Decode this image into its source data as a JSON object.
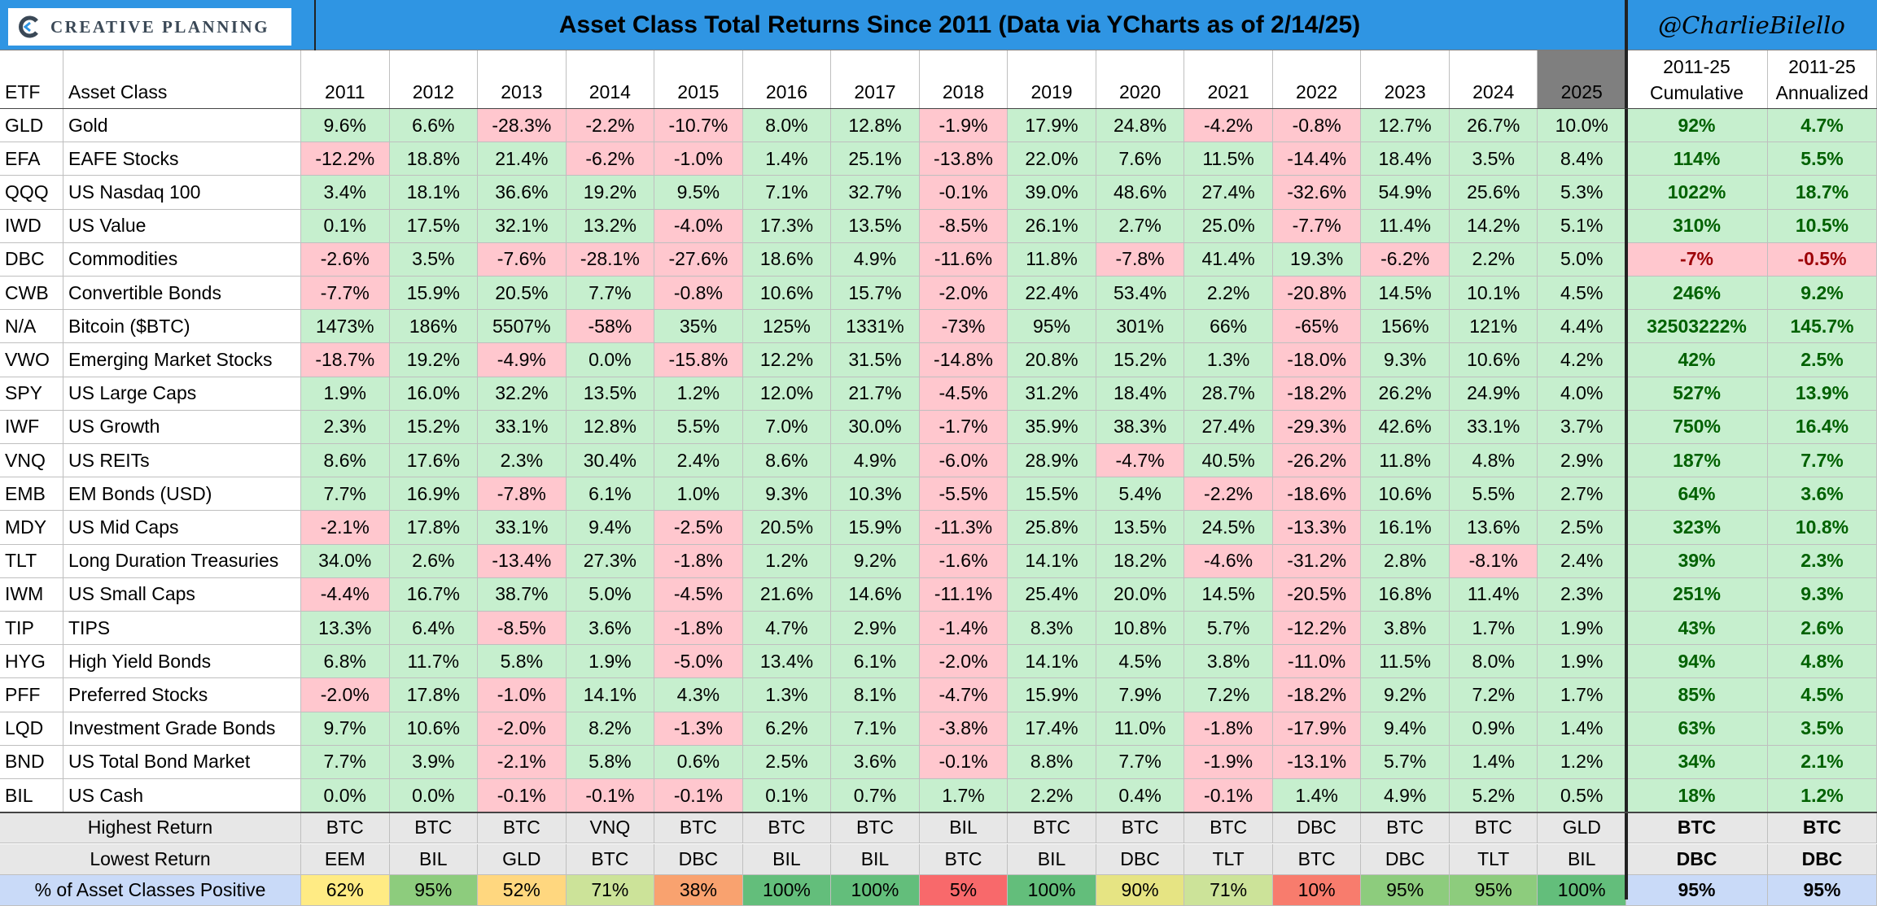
{
  "header": {
    "logo_text": "CREATIVE PLANNING",
    "title": "Asset Class Total Returns Since 2011 (Data via YCharts as of 2/14/25)",
    "handle": "@CharlieBilello",
    "col_etf": "ETF",
    "col_asset_class": "Asset Class",
    "years": [
      "2011",
      "2012",
      "2013",
      "2014",
      "2015",
      "2016",
      "2017",
      "2018",
      "2019",
      "2020",
      "2021",
      "2022",
      "2023",
      "2024",
      "2025"
    ],
    "cum_label_1": "2011-25",
    "cum_label_2": "Cumulative",
    "ann_label_1": "2011-25",
    "ann_label_2": "Annualized"
  },
  "colors": {
    "title_bar": "#2f95e3",
    "positive_fill": "#c6efce",
    "negative_fill": "#ffc7ce",
    "header_gray": "#e7e7e7",
    "highlight_2025": "#7f7f7f"
  },
  "chart_data": {
    "type": "table",
    "title": "Asset Class Total Returns Since 2011 (Data via YCharts as of 2/14/25)",
    "columns": [
      "2011",
      "2012",
      "2013",
      "2014",
      "2015",
      "2016",
      "2017",
      "2018",
      "2019",
      "2020",
      "2021",
      "2022",
      "2023",
      "2024",
      "2025",
      "2011-25 Cumulative",
      "2011-25 Annualized"
    ],
    "rows": [
      {
        "etf": "GLD",
        "name": "Gold",
        "values": [
          "9.6%",
          "6.6%",
          "-28.3%",
          "-2.2%",
          "-10.7%",
          "8.0%",
          "12.8%",
          "-1.9%",
          "17.9%",
          "24.8%",
          "-4.2%",
          "-0.8%",
          "12.7%",
          "26.7%",
          "10.0%"
        ],
        "cumulative": "92%",
        "annualized": "4.7%"
      },
      {
        "etf": "EFA",
        "name": "EAFE Stocks",
        "values": [
          "-12.2%",
          "18.8%",
          "21.4%",
          "-6.2%",
          "-1.0%",
          "1.4%",
          "25.1%",
          "-13.8%",
          "22.0%",
          "7.6%",
          "11.5%",
          "-14.4%",
          "18.4%",
          "3.5%",
          "8.4%"
        ],
        "cumulative": "114%",
        "annualized": "5.5%"
      },
      {
        "etf": "QQQ",
        "name": "US Nasdaq 100",
        "values": [
          "3.4%",
          "18.1%",
          "36.6%",
          "19.2%",
          "9.5%",
          "7.1%",
          "32.7%",
          "-0.1%",
          "39.0%",
          "48.6%",
          "27.4%",
          "-32.6%",
          "54.9%",
          "25.6%",
          "5.3%"
        ],
        "cumulative": "1022%",
        "annualized": "18.7%"
      },
      {
        "etf": "IWD",
        "name": "US Value",
        "values": [
          "0.1%",
          "17.5%",
          "32.1%",
          "13.2%",
          "-4.0%",
          "17.3%",
          "13.5%",
          "-8.5%",
          "26.1%",
          "2.7%",
          "25.0%",
          "-7.7%",
          "11.4%",
          "14.2%",
          "5.1%"
        ],
        "cumulative": "310%",
        "annualized": "10.5%"
      },
      {
        "etf": "DBC",
        "name": "Commodities",
        "values": [
          "-2.6%",
          "3.5%",
          "-7.6%",
          "-28.1%",
          "-27.6%",
          "18.6%",
          "4.9%",
          "-11.6%",
          "11.8%",
          "-7.8%",
          "41.4%",
          "19.3%",
          "-6.2%",
          "2.2%",
          "5.0%"
        ],
        "cumulative": "-7%",
        "annualized": "-0.5%"
      },
      {
        "etf": "CWB",
        "name": "Convertible Bonds",
        "values": [
          "-7.7%",
          "15.9%",
          "20.5%",
          "7.7%",
          "-0.8%",
          "10.6%",
          "15.7%",
          "-2.0%",
          "22.4%",
          "53.4%",
          "2.2%",
          "-20.8%",
          "14.5%",
          "10.1%",
          "4.5%"
        ],
        "cumulative": "246%",
        "annualized": "9.2%"
      },
      {
        "etf": "N/A",
        "name": "Bitcoin ($BTC)",
        "values": [
          "1473%",
          "186%",
          "5507%",
          "-58%",
          "35%",
          "125%",
          "1331%",
          "-73%",
          "95%",
          "301%",
          "66%",
          "-65%",
          "156%",
          "121%",
          "4.4%"
        ],
        "cumulative": "32503222%",
        "annualized": "145.7%"
      },
      {
        "etf": "VWO",
        "name": "Emerging Market Stocks",
        "values": [
          "-18.7%",
          "19.2%",
          "-4.9%",
          "0.0%",
          "-15.8%",
          "12.2%",
          "31.5%",
          "-14.8%",
          "20.8%",
          "15.2%",
          "1.3%",
          "-18.0%",
          "9.3%",
          "10.6%",
          "4.2%"
        ],
        "cumulative": "42%",
        "annualized": "2.5%"
      },
      {
        "etf": "SPY",
        "name": "US Large Caps",
        "values": [
          "1.9%",
          "16.0%",
          "32.2%",
          "13.5%",
          "1.2%",
          "12.0%",
          "21.7%",
          "-4.5%",
          "31.2%",
          "18.4%",
          "28.7%",
          "-18.2%",
          "26.2%",
          "24.9%",
          "4.0%"
        ],
        "cumulative": "527%",
        "annualized": "13.9%"
      },
      {
        "etf": "IWF",
        "name": "US Growth",
        "values": [
          "2.3%",
          "15.2%",
          "33.1%",
          "12.8%",
          "5.5%",
          "7.0%",
          "30.0%",
          "-1.7%",
          "35.9%",
          "38.3%",
          "27.4%",
          "-29.3%",
          "42.6%",
          "33.1%",
          "3.7%"
        ],
        "cumulative": "750%",
        "annualized": "16.4%"
      },
      {
        "etf": "VNQ",
        "name": "US REITs",
        "values": [
          "8.6%",
          "17.6%",
          "2.3%",
          "30.4%",
          "2.4%",
          "8.6%",
          "4.9%",
          "-6.0%",
          "28.9%",
          "-4.7%",
          "40.5%",
          "-26.2%",
          "11.8%",
          "4.8%",
          "2.9%"
        ],
        "cumulative": "187%",
        "annualized": "7.7%"
      },
      {
        "etf": "EMB",
        "name": "EM Bonds (USD)",
        "values": [
          "7.7%",
          "16.9%",
          "-7.8%",
          "6.1%",
          "1.0%",
          "9.3%",
          "10.3%",
          "-5.5%",
          "15.5%",
          "5.4%",
          "-2.2%",
          "-18.6%",
          "10.6%",
          "5.5%",
          "2.7%"
        ],
        "cumulative": "64%",
        "annualized": "3.6%"
      },
      {
        "etf": "MDY",
        "name": "US Mid Caps",
        "values": [
          "-2.1%",
          "17.8%",
          "33.1%",
          "9.4%",
          "-2.5%",
          "20.5%",
          "15.9%",
          "-11.3%",
          "25.8%",
          "13.5%",
          "24.5%",
          "-13.3%",
          "16.1%",
          "13.6%",
          "2.5%"
        ],
        "cumulative": "323%",
        "annualized": "10.8%"
      },
      {
        "etf": "TLT",
        "name": "Long Duration Treasuries",
        "values": [
          "34.0%",
          "2.6%",
          "-13.4%",
          "27.3%",
          "-1.8%",
          "1.2%",
          "9.2%",
          "-1.6%",
          "14.1%",
          "18.2%",
          "-4.6%",
          "-31.2%",
          "2.8%",
          "-8.1%",
          "2.4%"
        ],
        "cumulative": "39%",
        "annualized": "2.3%"
      },
      {
        "etf": "IWM",
        "name": "US Small Caps",
        "values": [
          "-4.4%",
          "16.7%",
          "38.7%",
          "5.0%",
          "-4.5%",
          "21.6%",
          "14.6%",
          "-11.1%",
          "25.4%",
          "20.0%",
          "14.5%",
          "-20.5%",
          "16.8%",
          "11.4%",
          "2.3%"
        ],
        "cumulative": "251%",
        "annualized": "9.3%"
      },
      {
        "etf": "TIP",
        "name": "TIPS",
        "values": [
          "13.3%",
          "6.4%",
          "-8.5%",
          "3.6%",
          "-1.8%",
          "4.7%",
          "2.9%",
          "-1.4%",
          "8.3%",
          "10.8%",
          "5.7%",
          "-12.2%",
          "3.8%",
          "1.7%",
          "1.9%"
        ],
        "cumulative": "43%",
        "annualized": "2.6%"
      },
      {
        "etf": "HYG",
        "name": "High Yield Bonds",
        "values": [
          "6.8%",
          "11.7%",
          "5.8%",
          "1.9%",
          "-5.0%",
          "13.4%",
          "6.1%",
          "-2.0%",
          "14.1%",
          "4.5%",
          "3.8%",
          "-11.0%",
          "11.5%",
          "8.0%",
          "1.9%"
        ],
        "cumulative": "94%",
        "annualized": "4.8%"
      },
      {
        "etf": "PFF",
        "name": "Preferred Stocks",
        "values": [
          "-2.0%",
          "17.8%",
          "-1.0%",
          "14.1%",
          "4.3%",
          "1.3%",
          "8.1%",
          "-4.7%",
          "15.9%",
          "7.9%",
          "7.2%",
          "-18.2%",
          "9.2%",
          "7.2%",
          "1.7%"
        ],
        "cumulative": "85%",
        "annualized": "4.5%"
      },
      {
        "etf": "LQD",
        "name": "Investment Grade Bonds",
        "values": [
          "9.7%",
          "10.6%",
          "-2.0%",
          "8.2%",
          "-1.3%",
          "6.2%",
          "7.1%",
          "-3.8%",
          "17.4%",
          "11.0%",
          "-1.8%",
          "-17.9%",
          "9.4%",
          "0.9%",
          "1.4%"
        ],
        "cumulative": "63%",
        "annualized": "3.5%"
      },
      {
        "etf": "BND",
        "name": "US Total Bond Market",
        "values": [
          "7.7%",
          "3.9%",
          "-2.1%",
          "5.8%",
          "0.6%",
          "2.5%",
          "3.6%",
          "-0.1%",
          "8.8%",
          "7.7%",
          "-1.9%",
          "-13.1%",
          "5.7%",
          "1.4%",
          "1.2%"
        ],
        "cumulative": "34%",
        "annualized": "2.1%"
      },
      {
        "etf": "BIL",
        "name": "US Cash",
        "values": [
          "0.0%",
          "0.0%",
          "-0.1%",
          "-0.1%",
          "-0.1%",
          "0.1%",
          "0.7%",
          "1.7%",
          "2.2%",
          "0.4%",
          "-0.1%",
          "1.4%",
          "4.9%",
          "5.2%",
          "0.5%"
        ],
        "cumulative": "18%",
        "annualized": "1.2%"
      }
    ],
    "summary": {
      "highest": {
        "label": "Highest Return",
        "values": [
          "BTC",
          "BTC",
          "BTC",
          "VNQ",
          "BTC",
          "BTC",
          "BTC",
          "BIL",
          "BTC",
          "BTC",
          "BTC",
          "DBC",
          "BTC",
          "BTC",
          "GLD",
          "BTC",
          "BTC"
        ]
      },
      "lowest": {
        "label": "Lowest Return",
        "values": [
          "EEM",
          "BIL",
          "GLD",
          "BTC",
          "DBC",
          "BIL",
          "BIL",
          "BTC",
          "BIL",
          "DBC",
          "TLT",
          "BTC",
          "DBC",
          "TLT",
          "BIL",
          "DBC",
          "DBC"
        ]
      },
      "positive": {
        "label": "% of Asset Classes Positive",
        "values": [
          "62%",
          "95%",
          "52%",
          "71%",
          "38%",
          "100%",
          "100%",
          "5%",
          "100%",
          "90%",
          "71%",
          "10%",
          "95%",
          "95%",
          "100%",
          "95%",
          "95%"
        ],
        "colors": [
          "#ffeb84",
          "#8dcc7d",
          "#ffd77f",
          "#cce399",
          "#f9a26f",
          "#63be7b",
          "#63be7b",
          "#f8696b",
          "#63be7b",
          "#e6e483",
          "#cce399",
          "#f87c6d",
          "#8dcc7d",
          "#8dcc7d",
          "#63be7b",
          "#c9daf8",
          "#c9daf8"
        ]
      }
    }
  }
}
